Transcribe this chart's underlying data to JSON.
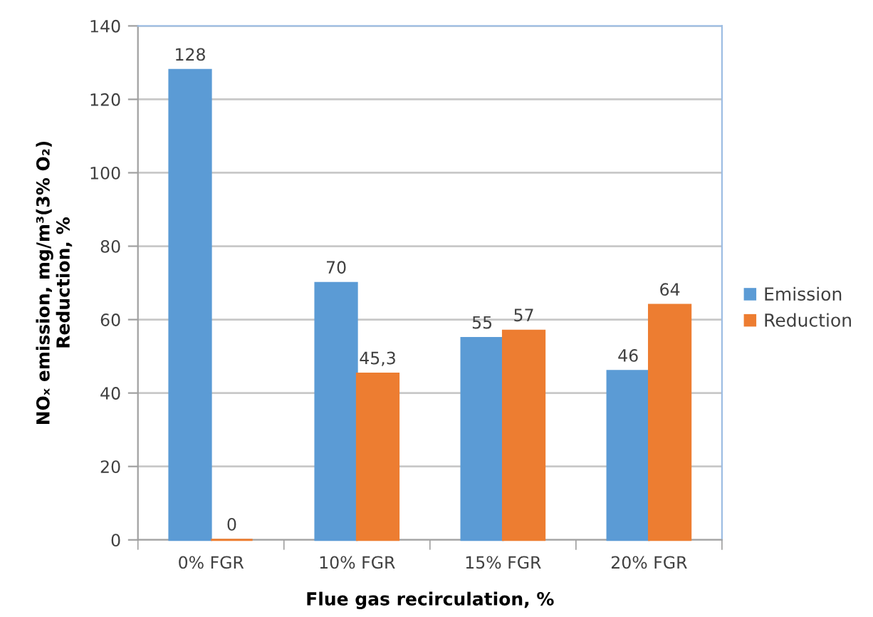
{
  "chart_data": {
    "type": "bar",
    "xlabel": "Flue gas recirculation, %",
    "ylabel": "NOₓ emission, mg/m³(3% O₂)\nReduction, %",
    "categories": [
      "0% FGR",
      "10% FGR",
      "15% FGR",
      "20% FGR"
    ],
    "series": [
      {
        "name": "Emission",
        "color": "#5b9bd5",
        "values": [
          128,
          70,
          55,
          46
        ],
        "value_labels": [
          "128",
          "70",
          "55",
          "46"
        ]
      },
      {
        "name": "Reduction",
        "color": "#ed7d31",
        "values": [
          0,
          45.3,
          57,
          64
        ],
        "value_labels": [
          "0",
          "45,3",
          "57",
          "64"
        ]
      }
    ],
    "ylim": [
      0,
      140
    ],
    "yticks": [
      0,
      20,
      40,
      60,
      80,
      100,
      120,
      140
    ],
    "grid": "y",
    "legend": "right"
  }
}
